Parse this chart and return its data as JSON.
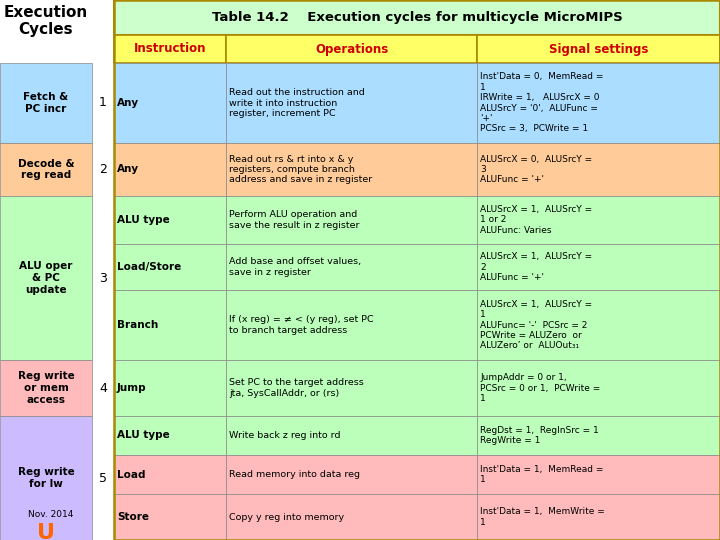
{
  "title": "Table 14.2    Execution cycles for multicycle MicroMIPS",
  "title_bg": "#ccffcc",
  "header_bg": "#ffff66",
  "header_text_color": "#cc0000",
  "col_headers": [
    "Instruction",
    "Operations",
    "Signal settings"
  ],
  "left_panel_title": "Execution\nCycles",
  "left_labels": [
    {
      "text": "Fetch &\nPC incr",
      "bg": "#aaddff",
      "cycle": "1"
    },
    {
      "text": "Decode &\nreg read",
      "bg": "#ffcc99",
      "cycle": "2"
    },
    {
      "text": "ALU oper\n& PC\nupdate",
      "bg": "#bbffbb",
      "cycle": "3"
    },
    {
      "text": "Reg write\nor mem\naccess",
      "bg": "#ffbbbb",
      "cycle": "4"
    },
    {
      "text": "Reg write\nfor lw",
      "bg": "#ccbbff",
      "cycle": "5"
    }
  ],
  "rows": [
    {
      "cycle_idx": 0,
      "row_bg": "#aaddff",
      "instruction": "Any",
      "inst_italic": false,
      "operations": "Read out the instruction and\nwrite it into instruction\nregister, increment PC",
      "signals": "Inst'Data = 0,  MemRead =\n1\nIRWrite = 1,   ALUSrcX = 0\nALUSrcY = '0',  ALUFunc =\n'+'\nPCSrc = 3,  PCWrite = 1"
    },
    {
      "cycle_idx": 1,
      "row_bg": "#ffcc99",
      "instruction": "Any",
      "inst_italic": false,
      "operations": "Read out rs & rt into x & y\nregisters, compute branch\naddress and save in z register",
      "signals": "ALUSrcX = 0,  ALUSrcY =\n3\nALUFunc = '+'"
    },
    {
      "cycle_idx": 2,
      "row_bg": "#bbffbb",
      "instruction": "ALU type",
      "inst_italic": false,
      "operations": "Perform ALU operation and\nsave the result in z register",
      "signals": "ALUSrcX = 1,  ALUSrcY =\n1 or 2\nALUFunc: Varies"
    },
    {
      "cycle_idx": 2,
      "row_bg": "#bbffbb",
      "instruction": "Load/Store",
      "inst_italic": false,
      "operations": "Add base and offset values,\nsave in z register",
      "signals": "ALUSrcX = 1,  ALUSrcY =\n2\nALUFunc = '+'"
    },
    {
      "cycle_idx": 2,
      "row_bg": "#bbffbb",
      "instruction": "Branch",
      "inst_italic": false,
      "operations": "If (x reg) = ≠ < (y reg), set PC\nto branch target address",
      "signals": "ALUSrcX = 1,  ALUSrcY =\n1\nALUFunc= '-'  PCSrc = 2\nPCWrite = ALUZero  or\nALUZero’ or  ALUOut₃₁"
    },
    {
      "cycle_idx": 3,
      "row_bg": "#bbffbb",
      "instruction": "Jump",
      "inst_italic": false,
      "operations": "Set PC to the target address\njta, SysCallAddr, or (rs)",
      "signals": "JumpAddr = 0 or 1,\nPCSrc = 0 or 1,  PCWrite =\n1"
    },
    {
      "cycle_idx": 4,
      "row_bg": "#bbffbb",
      "instruction": "ALU type",
      "inst_italic": false,
      "operations": "Write back z reg into rd",
      "signals": "RegDst = 1,  RegInSrc = 1\nRegWrite = 1"
    },
    {
      "cycle_idx": 4,
      "row_bg": "#ffbbbb",
      "instruction": "Load",
      "inst_italic": false,
      "operations": "Read memory into data reg",
      "signals": "Inst'Data = 1,  MemRead =\n1"
    },
    {
      "cycle_idx": 4,
      "row_bg": "#ffbbbb",
      "instruction": "Store",
      "inst_italic": false,
      "operations": "Copy y reg into memory",
      "signals": "Inst'Data = 1,  MemWrite =\n1"
    }
  ],
  "footer_text": "Nov. 2014",
  "u_color": "#ff6600",
  "border_color": "#aa8800",
  "grid_color": "#888888"
}
